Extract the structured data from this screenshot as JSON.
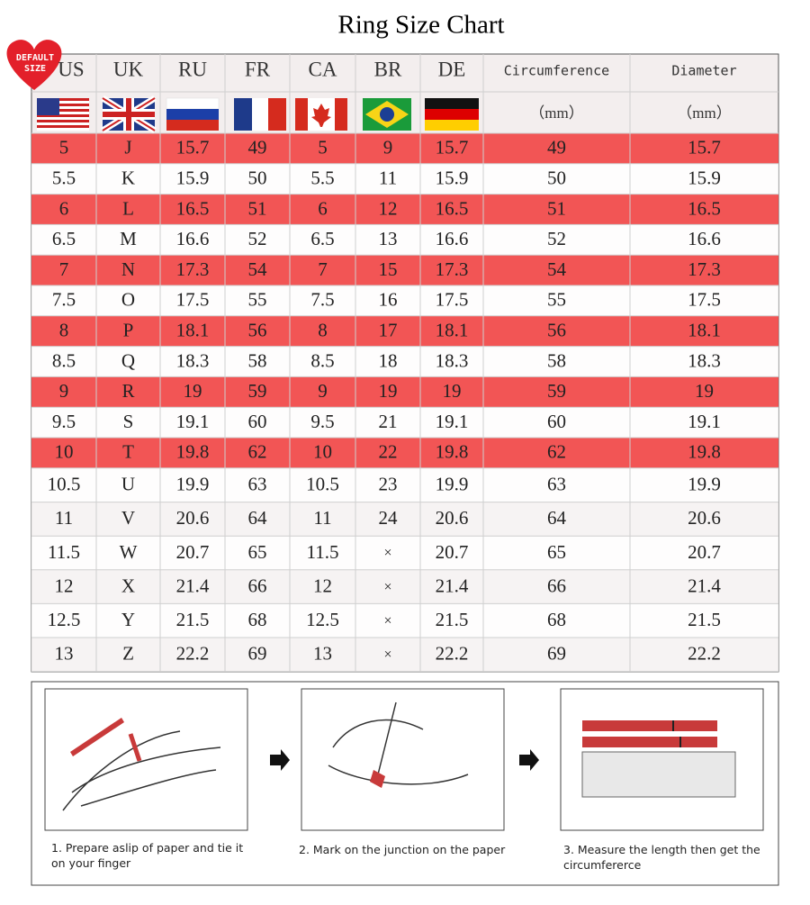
{
  "header": {
    "title": "Ring  Size Chart",
    "badge": [
      "DEFAULT",
      "SIZE"
    ]
  },
  "table": {
    "columns": [
      "US",
      "UK",
      "RU",
      "FR",
      "CA",
      "BR",
      "DE",
      "Circumference",
      "Diameter"
    ],
    "units": [
      "（mm）",
      "（mm）"
    ],
    "rows": [
      [
        5,
        "J",
        15.7,
        49,
        5,
        9,
        15.7,
        49,
        15.7
      ],
      [
        5.5,
        "K",
        15.9,
        50,
        5.5,
        11,
        15.9,
        50,
        15.9
      ],
      [
        6,
        "L",
        16.5,
        51,
        6,
        12,
        16.5,
        51,
        16.5
      ],
      [
        6.5,
        "M",
        16.6,
        52,
        6.5,
        13,
        16.6,
        52,
        16.6
      ],
      [
        7,
        "N",
        17.3,
        54,
        7,
        15,
        17.3,
        54,
        17.3
      ],
      [
        7.5,
        "O",
        17.5,
        55,
        7.5,
        16,
        17.5,
        55,
        17.5
      ],
      [
        8,
        "P",
        18.1,
        56,
        8,
        17,
        18.1,
        56,
        18.1
      ],
      [
        8.5,
        "Q",
        18.3,
        58,
        8.5,
        18,
        18.3,
        58,
        18.3
      ],
      [
        9,
        "R",
        19,
        59,
        9,
        19,
        19,
        59,
        19
      ],
      [
        9.5,
        "S",
        19.1,
        60,
        9.5,
        21,
        19.1,
        60,
        19.1
      ],
      [
        10,
        "T",
        19.8,
        62,
        10,
        22,
        19.8,
        62,
        19.8
      ],
      [
        10.5,
        "U",
        19.9,
        63,
        10.5,
        23,
        19.9,
        63,
        19.9
      ],
      [
        11,
        "V",
        20.6,
        64,
        11,
        24,
        20.6,
        64,
        20.6
      ],
      [
        11.5,
        "W",
        20.7,
        65,
        11.5,
        "×",
        20.7,
        65,
        20.7
      ],
      [
        12,
        "X",
        21.4,
        66,
        12,
        "×",
        21.4,
        66,
        21.4
      ],
      [
        12.5,
        "Y",
        21.5,
        68,
        12.5,
        "×",
        21.5,
        68,
        21.5
      ],
      [
        13,
        "Z",
        22.2,
        69,
        13,
        "×",
        22.2,
        69,
        22.2
      ]
    ]
  },
  "steps": [
    "1. Prepare aslip of paper and tie it on your finger",
    "2. Mark on the junction on the paper",
    "3. Measure the length then get the circumfererce"
  ]
}
